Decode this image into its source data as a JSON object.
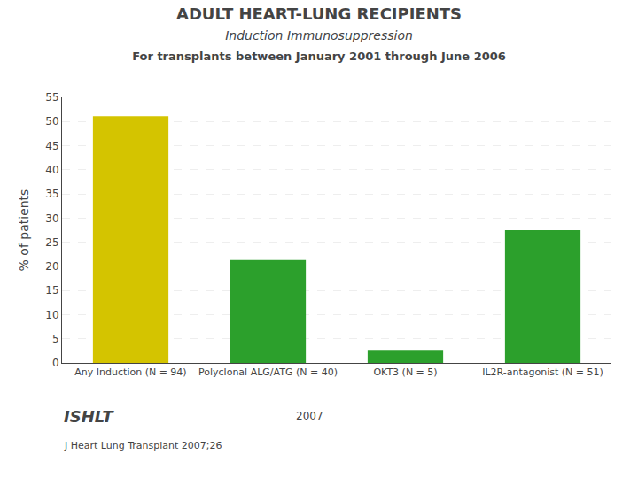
{
  "chart_data": {
    "type": "bar",
    "title": "ADULT HEART-LUNG RECIPIENTS",
    "subtitle": "Induction Immunosuppression",
    "annotations": [
      "For transplants between January 2001 through June 2006",
      "ISHLT",
      "2007",
      "J Heart Lung Transplant 2007;26"
    ],
    "categories": [
      "Any Induction (N = 94)",
      "Polyclonal ALG/ATG (N = 40)",
      "OKT3 (N = 5)",
      "IL2R-antagonist (N = 51)"
    ],
    "values": [
      51.1,
      21.3,
      2.7,
      27.5
    ],
    "colors": [
      "#d4c400",
      "#2ca02c",
      "#2ca02c",
      "#2ca02c"
    ],
    "ylabel": "% of patients",
    "ylim": [
      0,
      55
    ],
    "yticks": [
      0,
      5,
      10,
      15,
      20,
      25,
      30,
      35,
      40,
      45,
      50,
      55
    ],
    "grid": true
  }
}
